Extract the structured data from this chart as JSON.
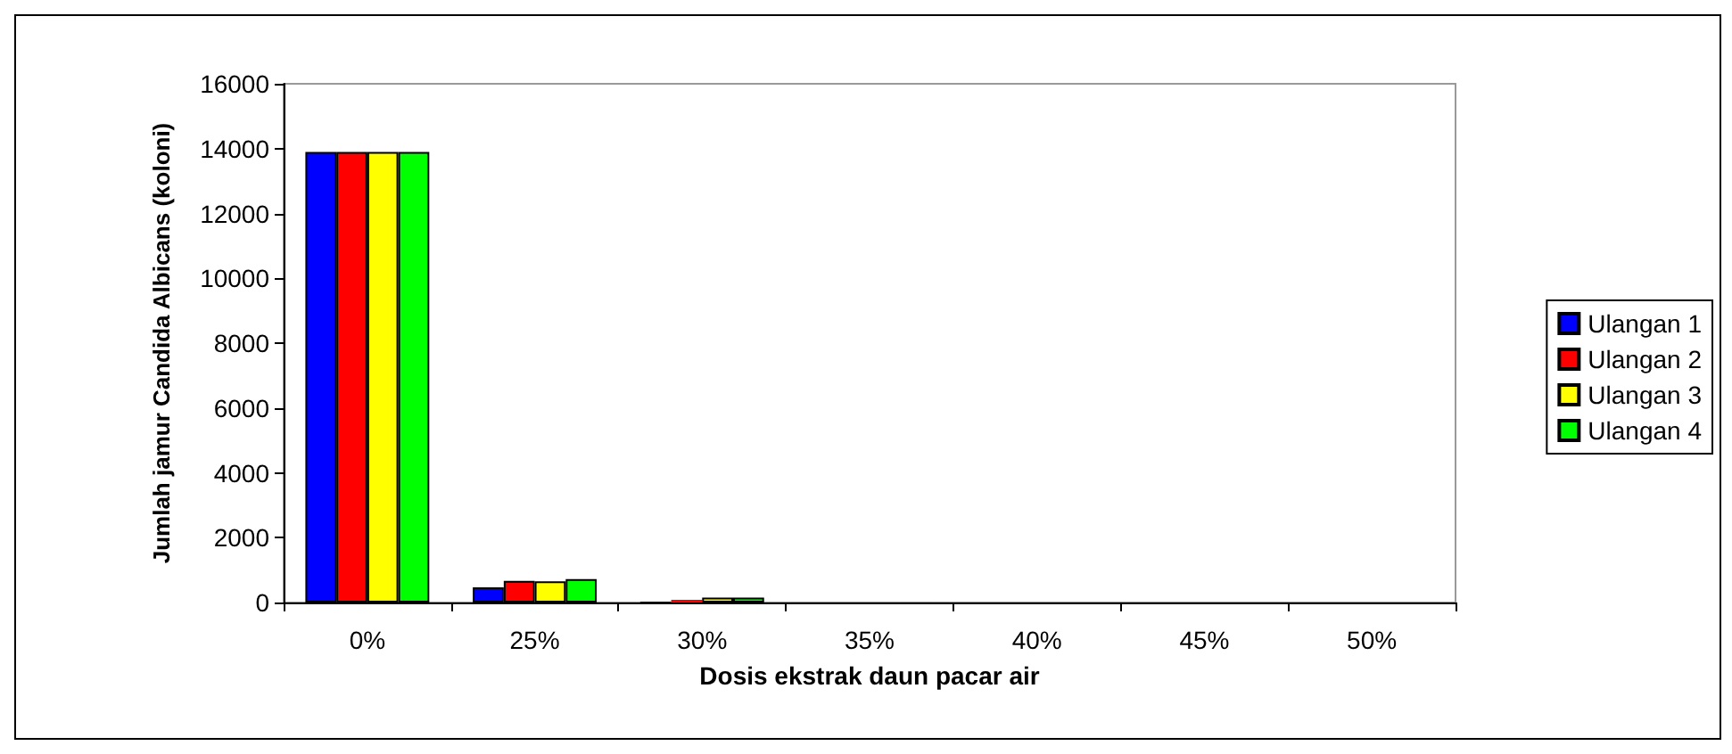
{
  "chart_data": {
    "type": "bar",
    "xlabel": "Dosis ekstrak daun pacar air",
    "ylabel": "Jumlah jamur Candida Albicans (koloni)",
    "categories": [
      "0%",
      "25%",
      "30%",
      "35%",
      "40%",
      "45%",
      "50%"
    ],
    "series": [
      {
        "name": "Ulangan 1",
        "color": "#0000ff",
        "values": [
          13900,
          470,
          30,
          0,
          0,
          0,
          0
        ]
      },
      {
        "name": "Ulangan 2",
        "color": "#ff0000",
        "values": [
          13900,
          670,
          80,
          0,
          0,
          0,
          0
        ]
      },
      {
        "name": "Ulangan 3",
        "color": "#ffff00",
        "values": [
          13900,
          650,
          150,
          0,
          0,
          0,
          0
        ]
      },
      {
        "name": "Ulangan 4",
        "color": "#00ff00",
        "values": [
          13900,
          720,
          150,
          30,
          0,
          0,
          0
        ]
      }
    ],
    "ylim": [
      0,
      16000
    ],
    "yticks": [
      0,
      2000,
      4000,
      6000,
      8000,
      10000,
      12000,
      14000,
      16000
    ],
    "grid": false,
    "legend": "right"
  }
}
